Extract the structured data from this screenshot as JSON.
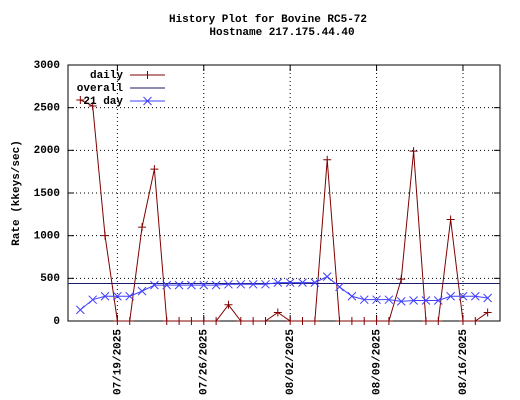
{
  "chart_data": {
    "type": "line",
    "title": "History Plot for Bovine RC5-72",
    "subtitle": "Hostname 217.175.44.40",
    "y_label": "Rate (kkeys/sec)",
    "x": [
      "2025-07-16",
      "2025-07-17",
      "2025-07-18",
      "2025-07-19",
      "2025-07-20",
      "2025-07-21",
      "2025-07-22",
      "2025-07-23",
      "2025-07-24",
      "2025-07-25",
      "2025-07-26",
      "2025-07-27",
      "2025-07-28",
      "2025-07-29",
      "2025-07-30",
      "2025-07-31",
      "2025-08-01",
      "2025-08-02",
      "2025-08-03",
      "2025-08-04",
      "2025-08-05",
      "2025-08-06",
      "2025-08-07",
      "2025-08-08",
      "2025-08-09",
      "2025-08-10",
      "2025-08-11",
      "2025-08-12",
      "2025-08-13",
      "2025-08-14",
      "2025-08-15",
      "2025-08-16",
      "2025-08-17",
      "2025-08-18"
    ],
    "series": [
      {
        "name": "daily",
        "color": "#800000",
        "marker": "plus",
        "values": [
          2590,
          2520,
          1000,
          0,
          0,
          1100,
          1780,
          0,
          0,
          0,
          0,
          0,
          190,
          0,
          0,
          0,
          100,
          0,
          0,
          0,
          1890,
          0,
          0,
          0,
          0,
          0,
          490,
          1990,
          0,
          0,
          1190,
          0,
          0,
          100
        ]
      },
      {
        "name": "overall",
        "color": "#1a1a6e",
        "value": 440
      },
      {
        "name": "21 day",
        "color": "#4040ff",
        "marker": "cross",
        "values": [
          130,
          250,
          290,
          290,
          290,
          350,
          420,
          420,
          420,
          420,
          420,
          420,
          430,
          430,
          430,
          430,
          450,
          450,
          450,
          450,
          520,
          400,
          290,
          250,
          250,
          250,
          230,
          240,
          240,
          240,
          290,
          290,
          290,
          270
        ]
      }
    ],
    "xlim": [
      "2025-07-15",
      "2025-08-19"
    ],
    "xticks": [
      {
        "value": "2025-07-19",
        "label": "07/19/2025"
      },
      {
        "value": "2025-07-26",
        "label": "07/26/2025"
      },
      {
        "value": "2025-08-02",
        "label": "08/02/2025"
      },
      {
        "value": "2025-08-09",
        "label": "08/09/2025"
      },
      {
        "value": "2025-08-16",
        "label": "08/16/2025"
      }
    ],
    "ylim": [
      0,
      3000
    ],
    "yticks": [
      0,
      500,
      1000,
      1500,
      2000,
      2500,
      3000
    ],
    "grid": true,
    "legend": "top-left"
  }
}
